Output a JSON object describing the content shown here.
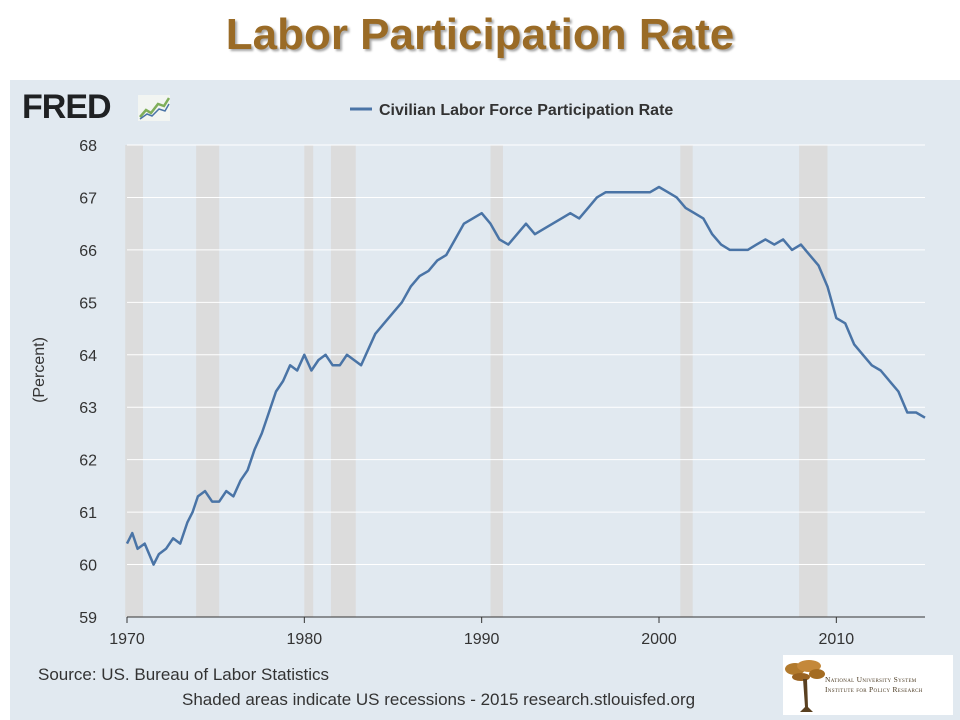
{
  "slide_title": "Labor Participation Rate",
  "logo": {
    "text": "FRED"
  },
  "source": "Source: US. Bureau of Labor Statistics",
  "note": "Shaded areas indicate US recessions - 2015 research.stlouisfed.org",
  "institution": {
    "line1": "National University System",
    "line2": "Institute for Policy Research"
  },
  "colors": {
    "series": "#4a74a6",
    "title": "#9a6b26",
    "panel": "#e1e9f0",
    "recession": "#dcdcdc"
  },
  "chart_data": {
    "type": "line",
    "title": "",
    "xlabel": "",
    "ylabel": "(Percent)",
    "xlim": [
      1970,
      2015
    ],
    "ylim": [
      59,
      68
    ],
    "xticks": [
      "1970",
      "1980",
      "1990",
      "2000",
      "2010"
    ],
    "yticks": [
      "59",
      "60",
      "61",
      "62",
      "63",
      "64",
      "65",
      "66",
      "67",
      "68"
    ],
    "grid": true,
    "legend_position": "top-center",
    "recessions": [
      [
        1969.9,
        1970.9
      ],
      [
        1973.9,
        1975.2
      ],
      [
        1980.0,
        1980.5
      ],
      [
        1981.5,
        1982.9
      ],
      [
        1990.5,
        1991.2
      ],
      [
        2001.2,
        2001.9
      ],
      [
        2007.9,
        2009.5
      ]
    ],
    "series": [
      {
        "name": "Civilian Labor Force Participation Rate",
        "x": [
          1970,
          1970.3,
          1970.6,
          1971,
          1971.5,
          1971.8,
          1972.2,
          1972.6,
          1973.0,
          1973.4,
          1973.7,
          1974.0,
          1974.4,
          1974.8,
          1975.2,
          1975.6,
          1976.0,
          1976.4,
          1976.8,
          1977.2,
          1977.6,
          1978.0,
          1978.4,
          1978.8,
          1979.2,
          1979.6,
          1980.0,
          1980.4,
          1980.8,
          1981.2,
          1981.6,
          1982.0,
          1982.4,
          1982.8,
          1983.2,
          1983.6,
          1984.0,
          1984.5,
          1985.0,
          1985.5,
          1986.0,
          1986.5,
          1987.0,
          1987.5,
          1988.0,
          1988.5,
          1989.0,
          1989.5,
          1990.0,
          1990.5,
          1991.0,
          1991.5,
          1992.0,
          1992.5,
          1993.0,
          1993.5,
          1994.0,
          1994.5,
          1995.0,
          1995.5,
          1996.0,
          1996.5,
          1997.0,
          1997.5,
          1998.0,
          1998.5,
          1999.0,
          1999.5,
          2000.0,
          2000.5,
          2001.0,
          2001.5,
          2002.0,
          2002.5,
          2003.0,
          2003.5,
          2004.0,
          2004.5,
          2005.0,
          2005.5,
          2006.0,
          2006.5,
          2007.0,
          2007.5,
          2008.0,
          2008.5,
          2009.0,
          2009.5,
          2010.0,
          2010.5,
          2011.0,
          2011.5,
          2012.0,
          2012.5,
          2013.0,
          2013.5,
          2014.0,
          2014.5,
          2015.0
        ],
        "values": [
          60.4,
          60.6,
          60.3,
          60.4,
          60.0,
          60.2,
          60.3,
          60.5,
          60.4,
          60.8,
          61.0,
          61.3,
          61.4,
          61.2,
          61.2,
          61.4,
          61.3,
          61.6,
          61.8,
          62.2,
          62.5,
          62.9,
          63.3,
          63.5,
          63.8,
          63.7,
          64.0,
          63.7,
          63.9,
          64.0,
          63.8,
          63.8,
          64.0,
          63.9,
          63.8,
          64.1,
          64.4,
          64.6,
          64.8,
          65.0,
          65.3,
          65.5,
          65.6,
          65.8,
          65.9,
          66.2,
          66.5,
          66.6,
          66.7,
          66.5,
          66.2,
          66.1,
          66.3,
          66.5,
          66.3,
          66.4,
          66.5,
          66.6,
          66.7,
          66.6,
          66.8,
          67.0,
          67.1,
          67.1,
          67.1,
          67.1,
          67.1,
          67.1,
          67.2,
          67.1,
          67.0,
          66.8,
          66.7,
          66.6,
          66.3,
          66.1,
          66.0,
          66.0,
          66.0,
          66.1,
          66.2,
          66.1,
          66.2,
          66.0,
          66.1,
          65.9,
          65.7,
          65.3,
          64.7,
          64.6,
          64.2,
          64.0,
          63.8,
          63.7,
          63.5,
          63.3,
          62.9,
          62.9,
          62.8
        ]
      }
    ]
  }
}
